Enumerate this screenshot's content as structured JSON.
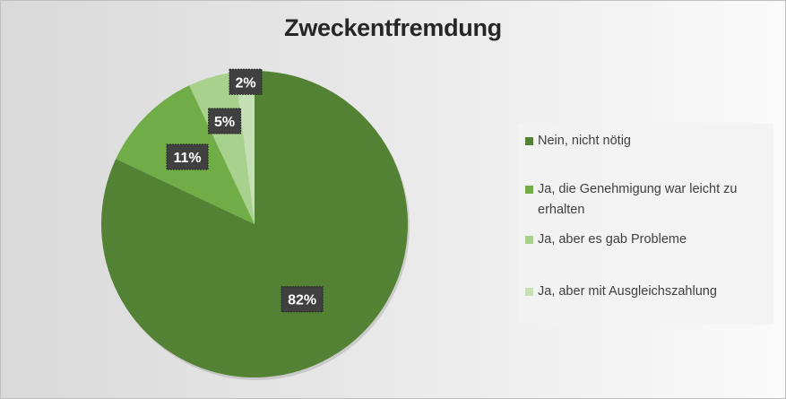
{
  "chart_data": {
    "type": "pie",
    "title": "Zweckentfremdung",
    "categories": [
      "Nein, nicht nötig",
      "Ja, die Genehmigung war leicht zu erhalten",
      "Ja, aber es gab Probleme",
      "Ja, aber mit Ausgleichszahlung"
    ],
    "values": [
      82,
      11,
      5,
      2
    ],
    "data_labels": [
      "82%",
      "11%",
      "5%",
      "2%"
    ],
    "colors": [
      "#548235",
      "#70ad47",
      "#a9d18e",
      "#c5e0b4"
    ],
    "legend_position": "right",
    "start_angle_deg": 0,
    "direction": "clockwise"
  },
  "legend": {
    "items": [
      {
        "label": "Nein, nicht nötig",
        "color": "#548235"
      },
      {
        "label": "Ja, die Genehmigung war leicht zu erhalten",
        "color": "#70ad47"
      },
      {
        "label": "Ja, aber es gab Probleme",
        "color": "#a9d18e"
      },
      {
        "label": "Ja, aber mit Ausgleichszahlung",
        "color": "#c5e0b4"
      }
    ]
  }
}
